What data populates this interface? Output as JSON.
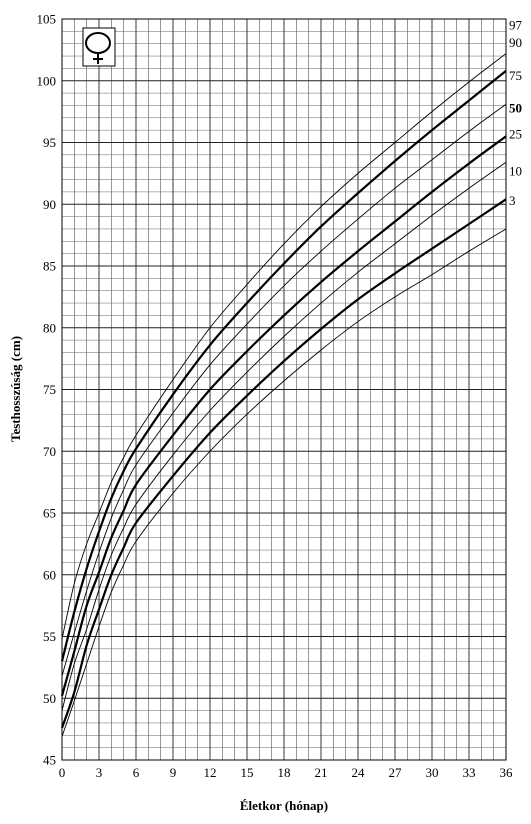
{
  "chart_data": {
    "type": "line",
    "title": "",
    "xlabel": "Életkor (hónap)",
    "ylabel": "Testhosszúság (cm)",
    "xlim": [
      0,
      36
    ],
    "ylim": [
      45,
      105
    ],
    "x_ticks": [
      "0",
      "3",
      "6",
      "9",
      "12",
      "15",
      "18",
      "21",
      "24",
      "27",
      "30",
      "33",
      "36"
    ],
    "y_ticks": [
      "45",
      "50",
      "55",
      "60",
      "65",
      "70",
      "75",
      "80",
      "85",
      "90",
      "95",
      "100",
      "105"
    ],
    "grid": true,
    "legend_symbol": "female-symbol",
    "legend_position": "top-left",
    "x": [
      0,
      1,
      2,
      3,
      4,
      5,
      6,
      9,
      12,
      15,
      18,
      21,
      24,
      27,
      30,
      33,
      36
    ],
    "series": [
      {
        "name": "97",
        "emphasis": false,
        "values": [
          54.8,
          59.3,
          62.5,
          65.0,
          67.5,
          69.5,
          71.3,
          75.8,
          80.0,
          83.5,
          86.8,
          89.8,
          92.5,
          95.0,
          97.5,
          99.9,
          102.2
        ]
      },
      {
        "name": "90",
        "emphasis": true,
        "values": [
          53.0,
          57.0,
          60.5,
          63.5,
          66.2,
          68.4,
          70.2,
          74.6,
          78.6,
          82.0,
          85.2,
          88.2,
          90.9,
          93.5,
          96.0,
          98.4,
          100.8
        ]
      },
      {
        "name": "75",
        "emphasis": false,
        "values": [
          51.8,
          55.3,
          58.7,
          61.8,
          64.6,
          66.9,
          68.9,
          73.1,
          77.0,
          80.3,
          83.4,
          86.2,
          88.8,
          91.3,
          93.6,
          95.9,
          98.1
        ]
      },
      {
        "name": "50",
        "emphasis": true,
        "values": [
          50.2,
          53.8,
          57.5,
          60.2,
          63.0,
          65.2,
          67.3,
          71.3,
          75.0,
          78.1,
          81.0,
          83.7,
          86.2,
          88.6,
          91.0,
          93.3,
          95.5
        ]
      },
      {
        "name": "25",
        "emphasis": false,
        "values": [
          49.0,
          52.8,
          55.6,
          58.8,
          61.6,
          63.8,
          65.7,
          69.7,
          73.3,
          76.4,
          79.3,
          82.0,
          84.5,
          86.8,
          89.1,
          91.3,
          93.4
        ]
      },
      {
        "name": "10",
        "emphasis": true,
        "values": [
          47.6,
          50.5,
          54.3,
          57.2,
          60.0,
          62.2,
          64.2,
          68.0,
          71.5,
          74.5,
          77.3,
          79.9,
          82.3,
          84.4,
          86.4,
          88.4,
          90.4
        ]
      },
      {
        "name": "3",
        "emphasis": false,
        "values": [
          46.9,
          49.8,
          52.8,
          55.8,
          58.6,
          60.8,
          62.7,
          66.6,
          70.0,
          73.0,
          75.7,
          78.2,
          80.5,
          82.5,
          84.3,
          86.2,
          88.0
        ]
      }
    ]
  }
}
